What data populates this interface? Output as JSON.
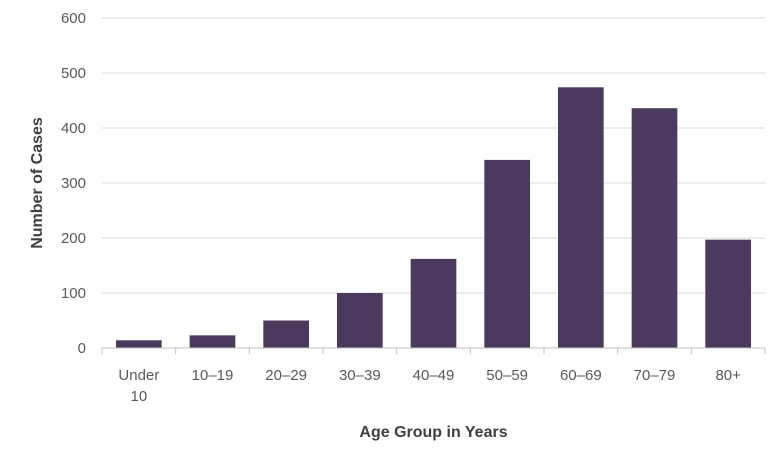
{
  "chart_data": {
    "type": "bar",
    "categories": [
      "Under 10",
      "10–19",
      "20–29",
      "30–39",
      "40–49",
      "50–59",
      "60–69",
      "70–79",
      "80+"
    ],
    "category_lines": [
      [
        "Under",
        "10"
      ],
      [
        "10–19"
      ],
      [
        "20–29"
      ],
      [
        "30–39"
      ],
      [
        "40–49"
      ],
      [
        "50–59"
      ],
      [
        "60–69"
      ],
      [
        "70–79"
      ],
      [
        "80+"
      ]
    ],
    "values": [
      14,
      23,
      50,
      100,
      162,
      342,
      474,
      436,
      197
    ],
    "xlabel": "Age Group in Years",
    "ylabel": "Number of Cases",
    "ylim": [
      0,
      600
    ],
    "yticks": [
      0,
      100,
      200,
      300,
      400,
      500,
      600
    ],
    "grid": true,
    "legend": "none",
    "bar_color": "#4b3a5e"
  }
}
